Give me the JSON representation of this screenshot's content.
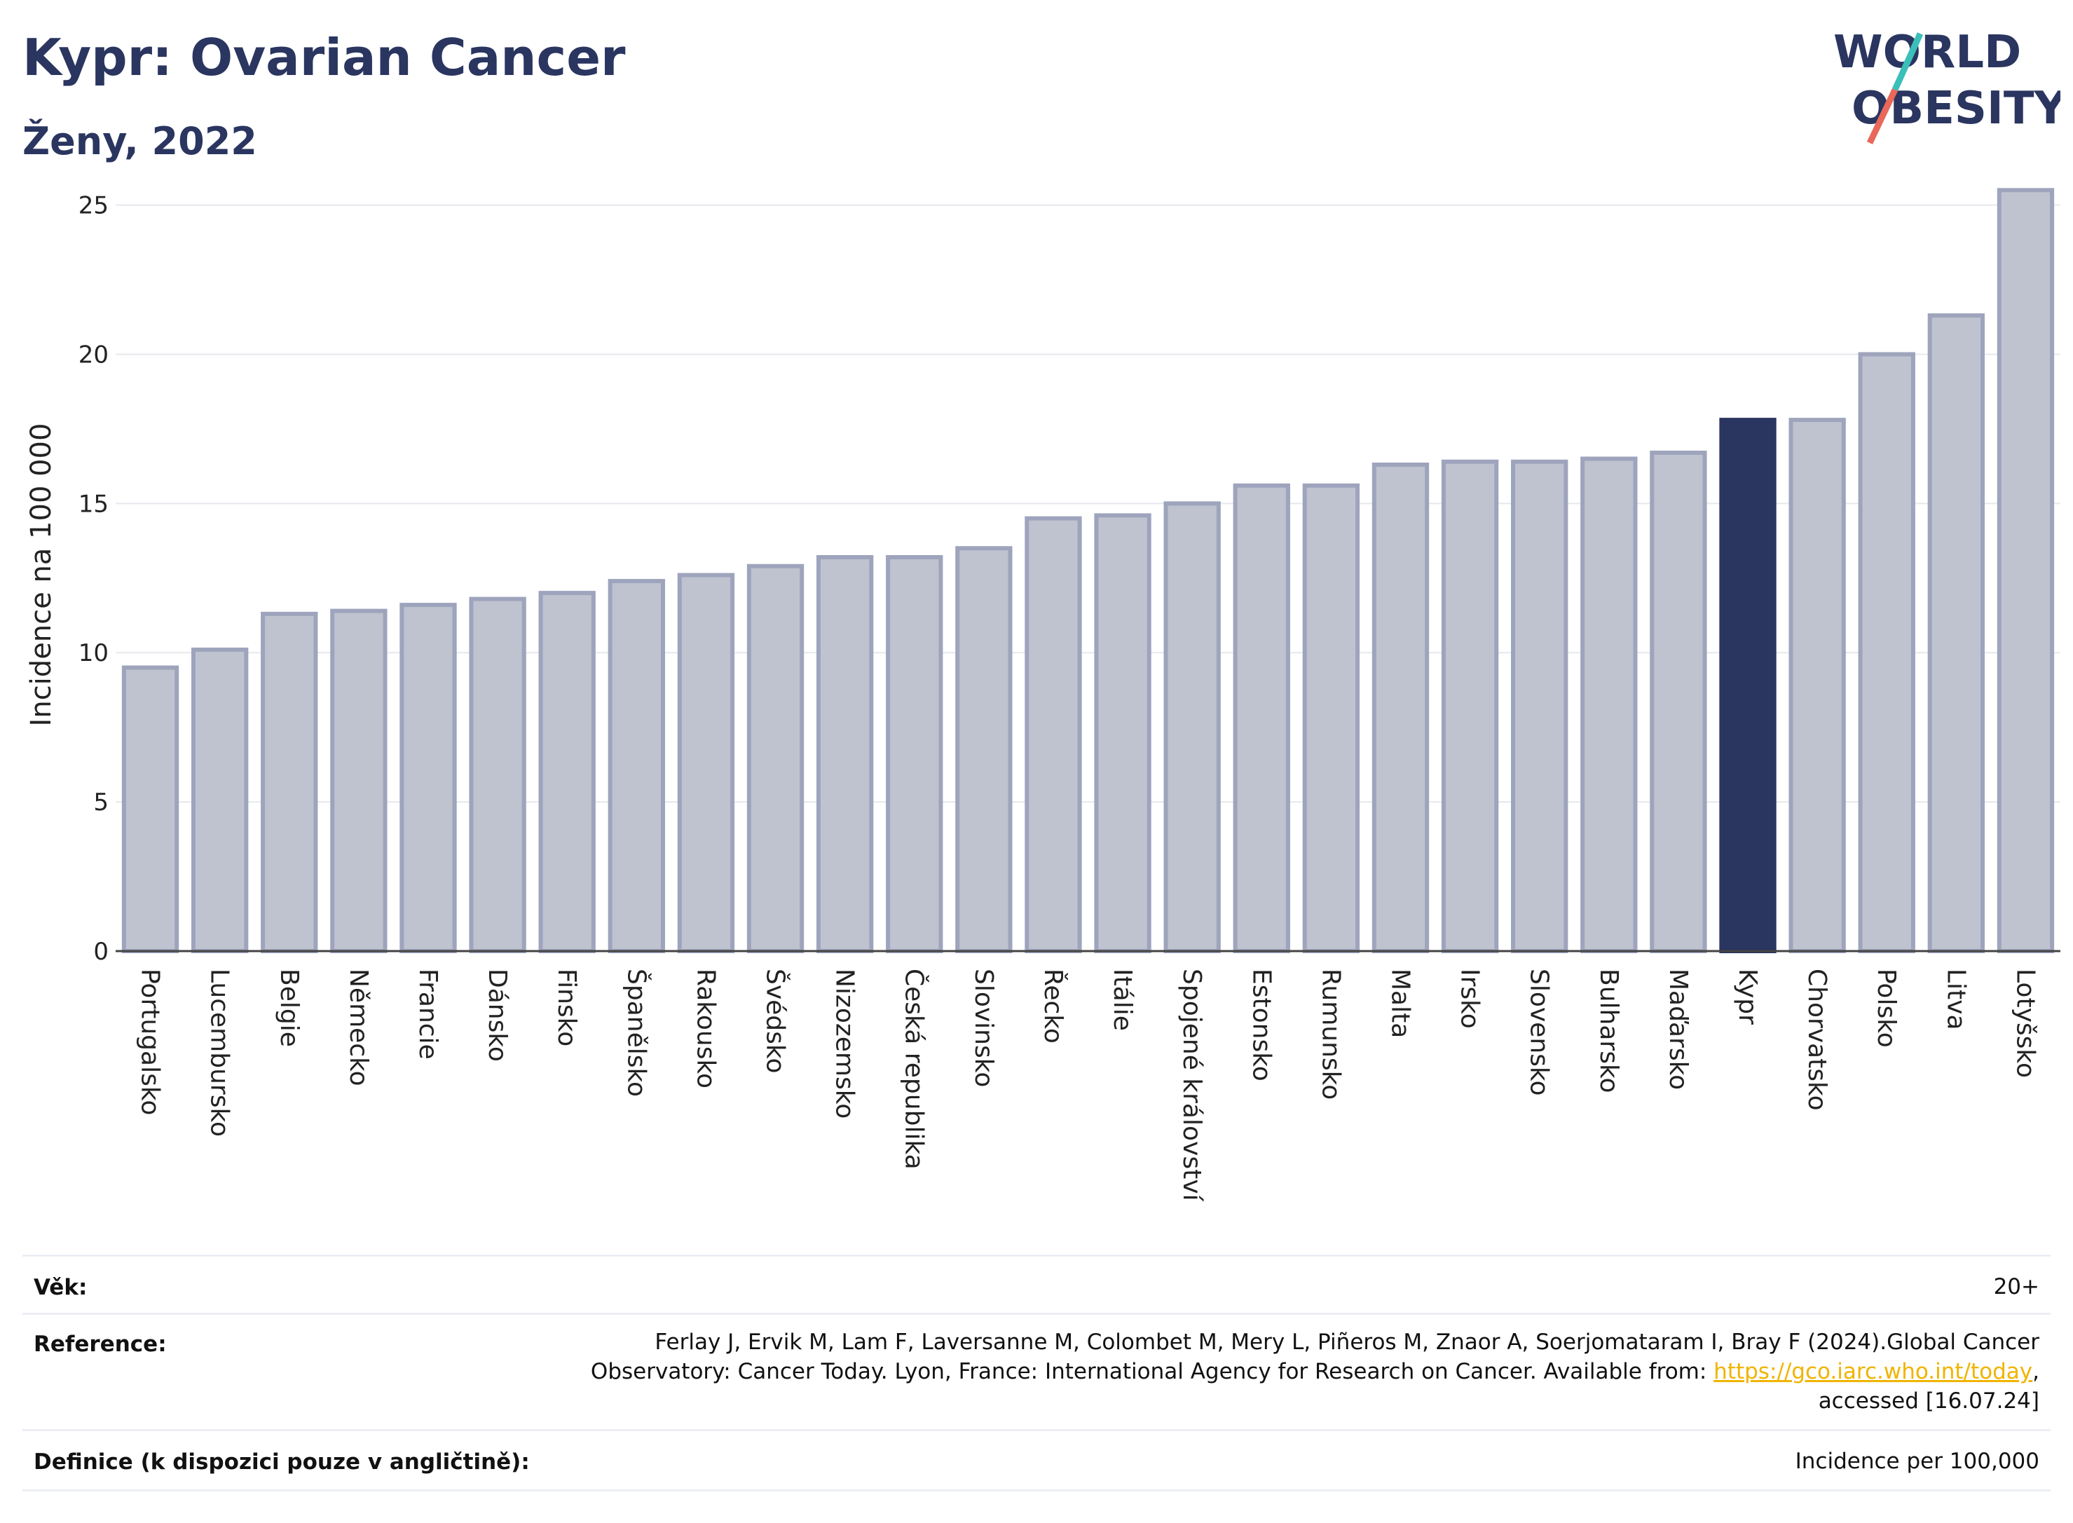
{
  "header": {
    "title": "Kypr: Ovarian Cancer",
    "subtitle": "Ženy, 2022"
  },
  "logo": {
    "line1": "WORLD",
    "line2": "OBESITY",
    "colors": {
      "text": "#2a3560",
      "slash_red": "#e8685a",
      "slash_teal": "#3bbfb9"
    }
  },
  "chart_data": {
    "type": "bar",
    "ylabel": "Incidence na 100 000",
    "xlabel": "",
    "ylim": [
      0,
      26
    ],
    "yticks": [
      0,
      5,
      10,
      15,
      20,
      25
    ],
    "grid": true,
    "highlight_category": "Kypr",
    "colors": {
      "default_fill": "#bfc3d0",
      "default_stroke": "#9ea4bc",
      "highlight": "#2a3560"
    },
    "categories": [
      "Portugalsko",
      "Lucembursko",
      "Belgie",
      "Německo",
      "Francie",
      "Dánsko",
      "Finsko",
      "Španělsko",
      "Rakousko",
      "Švédsko",
      "Nizozemsko",
      "Česká republika",
      "Slovinsko",
      "Řecko",
      "Itálie",
      "Spojené království",
      "Estonsko",
      "Rumunsko",
      "Malta",
      "Irsko",
      "Slovensko",
      "Bulharsko",
      "Maďarsko",
      "Kypr",
      "Chorvatsko",
      "Polsko",
      "Litva",
      "Lotyšsko"
    ],
    "values": [
      9.5,
      10.1,
      11.3,
      11.4,
      11.6,
      11.8,
      12.0,
      12.4,
      12.6,
      12.9,
      13.2,
      13.2,
      13.5,
      14.5,
      14.6,
      15.0,
      15.6,
      15.6,
      16.3,
      16.4,
      16.4,
      16.5,
      16.7,
      17.8,
      17.8,
      20.0,
      21.3,
      25.5
    ]
  },
  "footer": {
    "age_label": "Věk:",
    "age_value": "20+",
    "reference_label": "Reference:",
    "reference_line1": "Ferlay J, Ervik M, Lam F, Laversanne M, Colombet M, Mery L, Piñeros M, Znaor A, Soerjomataram I, Bray F (2024).Global Cancer",
    "reference_line2_text": "Observatory: Cancer Today. Lyon, France: International Agency for Research on Cancer. Available from: ",
    "reference_link": "https://gco.iarc.who.int/today",
    "reference_line2_tail": ",",
    "reference_line3": "accessed [16.07.24]",
    "definition_label": "Definice (k dispozici pouze v angličtině):",
    "definition_value": "Incidence per 100,000"
  }
}
